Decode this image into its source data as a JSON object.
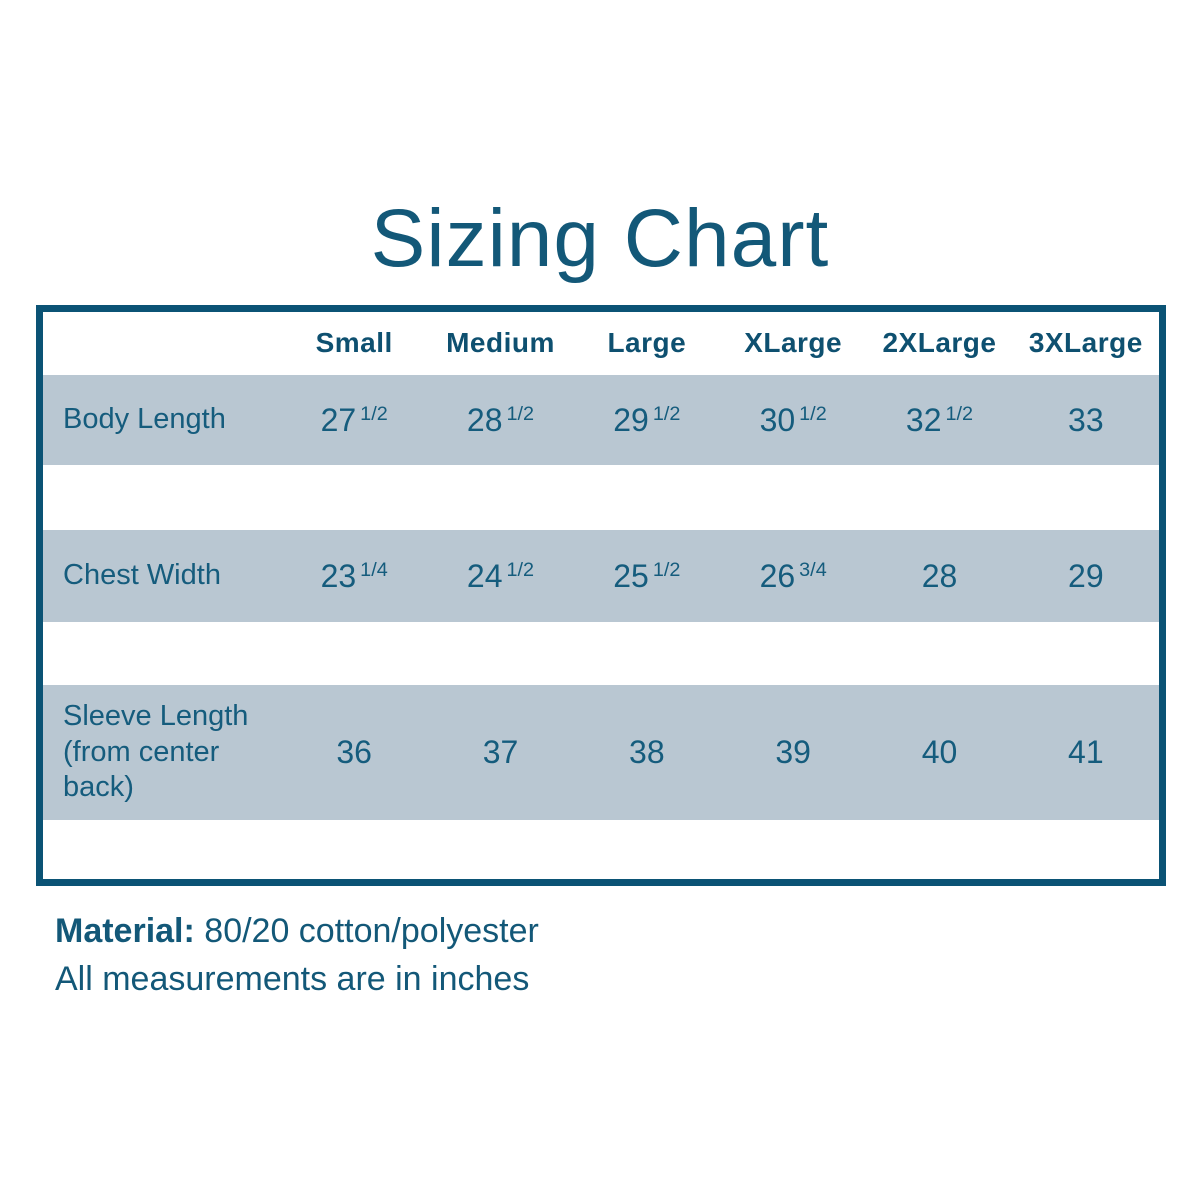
{
  "page": {
    "title": "Sizing Chart"
  },
  "table": {
    "columns": [
      "Small",
      "Medium",
      "Large",
      "XLarge",
      "2XLarge",
      "3XLarge"
    ],
    "rows": [
      {
        "label": "Body Length",
        "values": [
          "27 1/2",
          "28 1/2",
          "29 1/2",
          "30 1/2",
          "32 1/2",
          "33"
        ]
      },
      {
        "label": "Chest Width",
        "values": [
          "23 1/4",
          "24 1/2",
          "25 1/2",
          "26 3/4",
          "28",
          "29"
        ]
      },
      {
        "label": "Sleeve Length (from center back)",
        "values": [
          "36",
          "37",
          "38",
          "39",
          "40",
          "41"
        ]
      }
    ]
  },
  "footer": {
    "material_label": "Material:",
    "material_value": "80/20 cotton/polyester",
    "note": "All measurements are in inches"
  },
  "colors": {
    "teal_text": "#155c7d",
    "teal_border": "#0b5375",
    "row_band_bg": "#b9c7d2",
    "background": "#ffffff"
  },
  "chart_data": {
    "type": "table",
    "title": "Sizing Chart",
    "columns": [
      "",
      "Small",
      "Medium",
      "Large",
      "XLarge",
      "2XLarge",
      "3XLarge"
    ],
    "rows": [
      [
        "Body Length",
        "27 1/2",
        "28 1/2",
        "29 1/2",
        "30 1/2",
        "32 1/2",
        "33"
      ],
      [
        "Chest Width",
        "23 1/4",
        "24 1/2",
        "25 1/2",
        "26 3/4",
        "28",
        "29"
      ],
      [
        "Sleeve Length (from center back)",
        "36",
        "37",
        "38",
        "39",
        "40",
        "41"
      ]
    ],
    "units": "inches",
    "notes": [
      "Material: 80/20 cotton/polyester",
      "All measurements are in inches"
    ],
    "layout": {
      "banded_rows": true,
      "band_color": "#b9c7d2",
      "outer_border_color": "#0b5375",
      "header_position": "top"
    }
  }
}
